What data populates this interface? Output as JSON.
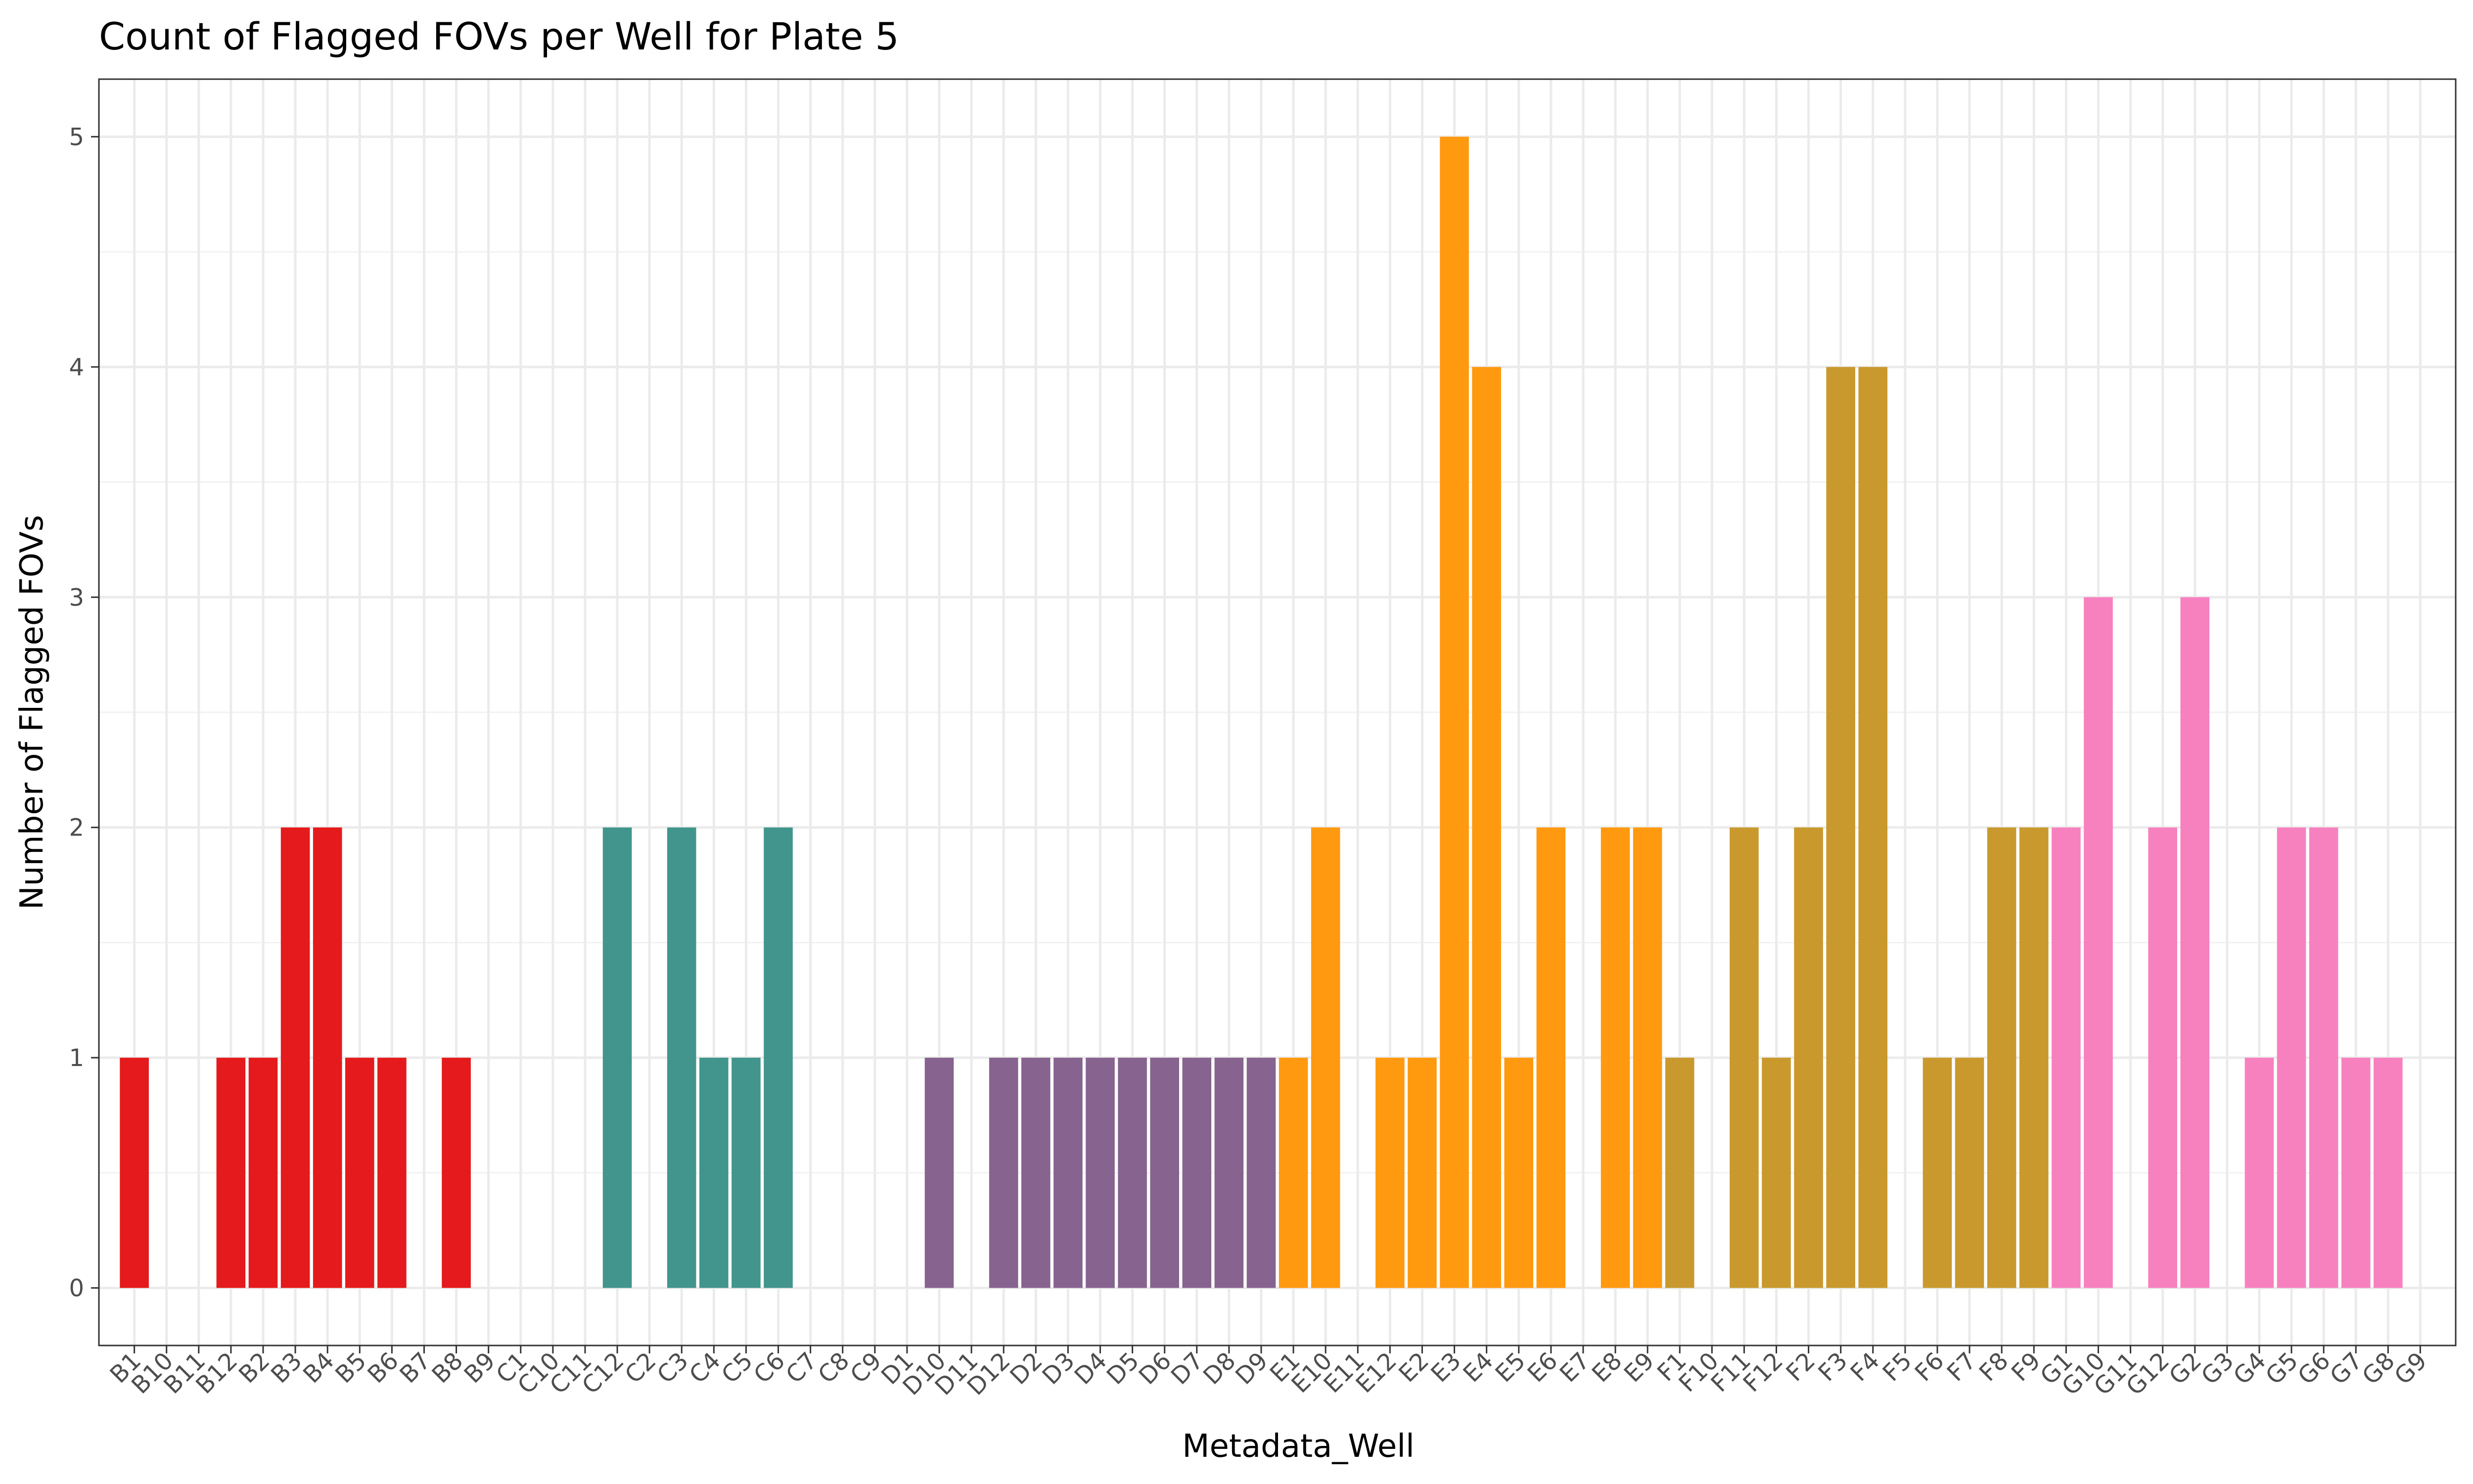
{
  "chart_data": {
    "type": "bar",
    "title": "Count of Flagged FOVs per Well for Plate 5",
    "xlabel": "Metadata_Well",
    "ylabel": "Number of Flagged FOVs",
    "ylim": [
      -0.25,
      5.25
    ],
    "yticks": [
      0,
      1,
      2,
      3,
      4,
      5
    ],
    "grid": true,
    "legend": "none",
    "row_colors": {
      "B": "#E41A1C",
      "C": "#41958C",
      "D": "#87638F",
      "E": "#FF990F",
      "F": "#C9992E",
      "G": "#F781BF"
    },
    "categories": [
      "B1",
      "B10",
      "B11",
      "B12",
      "B2",
      "B3",
      "B4",
      "B5",
      "B6",
      "B7",
      "B8",
      "B9",
      "C1",
      "C10",
      "C11",
      "C12",
      "C2",
      "C3",
      "C4",
      "C5",
      "C6",
      "C7",
      "C8",
      "C9",
      "D1",
      "D10",
      "D11",
      "D12",
      "D2",
      "D3",
      "D4",
      "D5",
      "D6",
      "D7",
      "D8",
      "D9",
      "E1",
      "E10",
      "E11",
      "E12",
      "E2",
      "E3",
      "E4",
      "E5",
      "E6",
      "E7",
      "E8",
      "E9",
      "F1",
      "F10",
      "F11",
      "F12",
      "F2",
      "F3",
      "F4",
      "F5",
      "F6",
      "F7",
      "F8",
      "F9",
      "G1",
      "G10",
      "G11",
      "G12",
      "G2",
      "G3",
      "G4",
      "G5",
      "G6",
      "G7",
      "G8",
      "G9"
    ],
    "values": [
      1,
      0,
      0,
      1,
      1,
      2,
      2,
      1,
      1,
      0,
      1,
      0,
      0,
      0,
      0,
      2,
      0,
      2,
      1,
      1,
      2,
      0,
      0,
      0,
      0,
      1,
      0,
      1,
      1,
      1,
      1,
      1,
      1,
      1,
      1,
      1,
      1,
      2,
      0,
      1,
      1,
      5,
      4,
      1,
      2,
      0,
      2,
      2,
      1,
      0,
      2,
      1,
      2,
      4,
      4,
      0,
      1,
      1,
      2,
      2,
      2,
      3,
      0,
      2,
      3,
      0,
      1,
      2,
      2,
      1,
      1,
      0
    ]
  }
}
